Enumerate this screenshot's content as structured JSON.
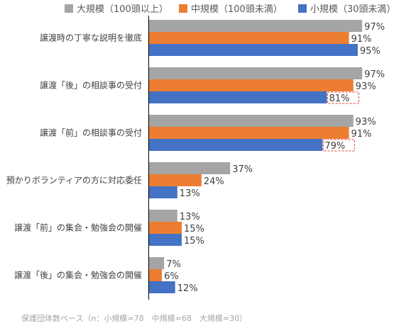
{
  "chart_data": {
    "type": "bar",
    "orientation": "horizontal",
    "categories": [
      "譲渡時の丁寧な説明を徹底",
      "譲渡「後」の相談事の受付",
      "譲渡「前」の相談事の受付",
      "預かりボランティアの方に対応委任",
      "譲渡「前」の集会・勉強会の開催",
      "譲渡「後」の集会・勉強会の開催"
    ],
    "series": [
      {
        "name": "大規模（100頭以上）",
        "color": "#a5a5a5",
        "values": [
          97,
          97,
          93,
          37,
          13,
          7
        ]
      },
      {
        "name": "中規模（100頭未満）",
        "color": "#ed7d31",
        "values": [
          91,
          93,
          91,
          24,
          15,
          6
        ]
      },
      {
        "name": "小規模（30頭未満）",
        "color": "#4472c4",
        "values": [
          95,
          81,
          79,
          13,
          15,
          12
        ]
      }
    ],
    "value_suffix": "%",
    "xlim": [
      0,
      100
    ],
    "grid": false,
    "legend_position": "top",
    "highlighted": [
      {
        "category_index": 1,
        "series_index": 2
      },
      {
        "category_index": 2,
        "series_index": 2
      }
    ]
  },
  "footnote": "保護団体数ベース（n：小規模=78　中規模=68　大規模=30）"
}
